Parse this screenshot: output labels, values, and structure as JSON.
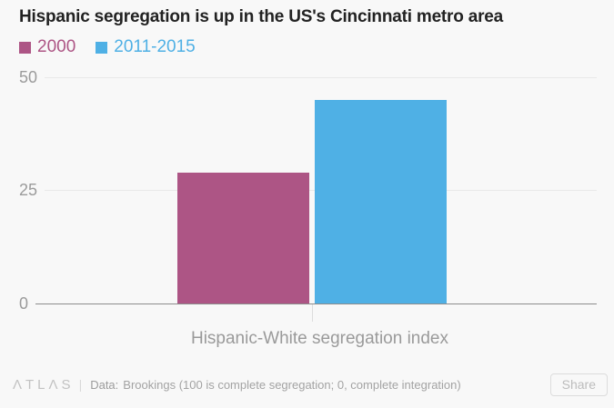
{
  "chart": {
    "title": "Hispanic segregation is up in the US's Cincinnati metro area"
  },
  "chart_data": {
    "type": "bar",
    "title": "Hispanic segregation is up in the US's Cincinnati metro area",
    "categories": [
      "Hispanic-White segregation index"
    ],
    "series": [
      {
        "name": "2000",
        "color": "#ad5585",
        "values": [
          29
        ]
      },
      {
        "name": "2011-2015",
        "color": "#4fb0e5",
        "values": [
          45
        ]
      }
    ],
    "xlabel": "Hispanic-White segregation index",
    "ylabel": "",
    "ylim": [
      0,
      50
    ],
    "yticks": [
      50,
      25,
      0
    ],
    "grid": true,
    "legend_position": "top-left",
    "background_color": "#f8f8f8",
    "gridline_color": "#e9e9e9",
    "zero_line_color": "#8c8c8c"
  },
  "footer": {
    "brand": "ΛTLΛS",
    "divider": "|",
    "data_label": "Data:",
    "source": "Brookings (100 is complete segregation; 0, complete integration)",
    "share_label": "Share"
  }
}
